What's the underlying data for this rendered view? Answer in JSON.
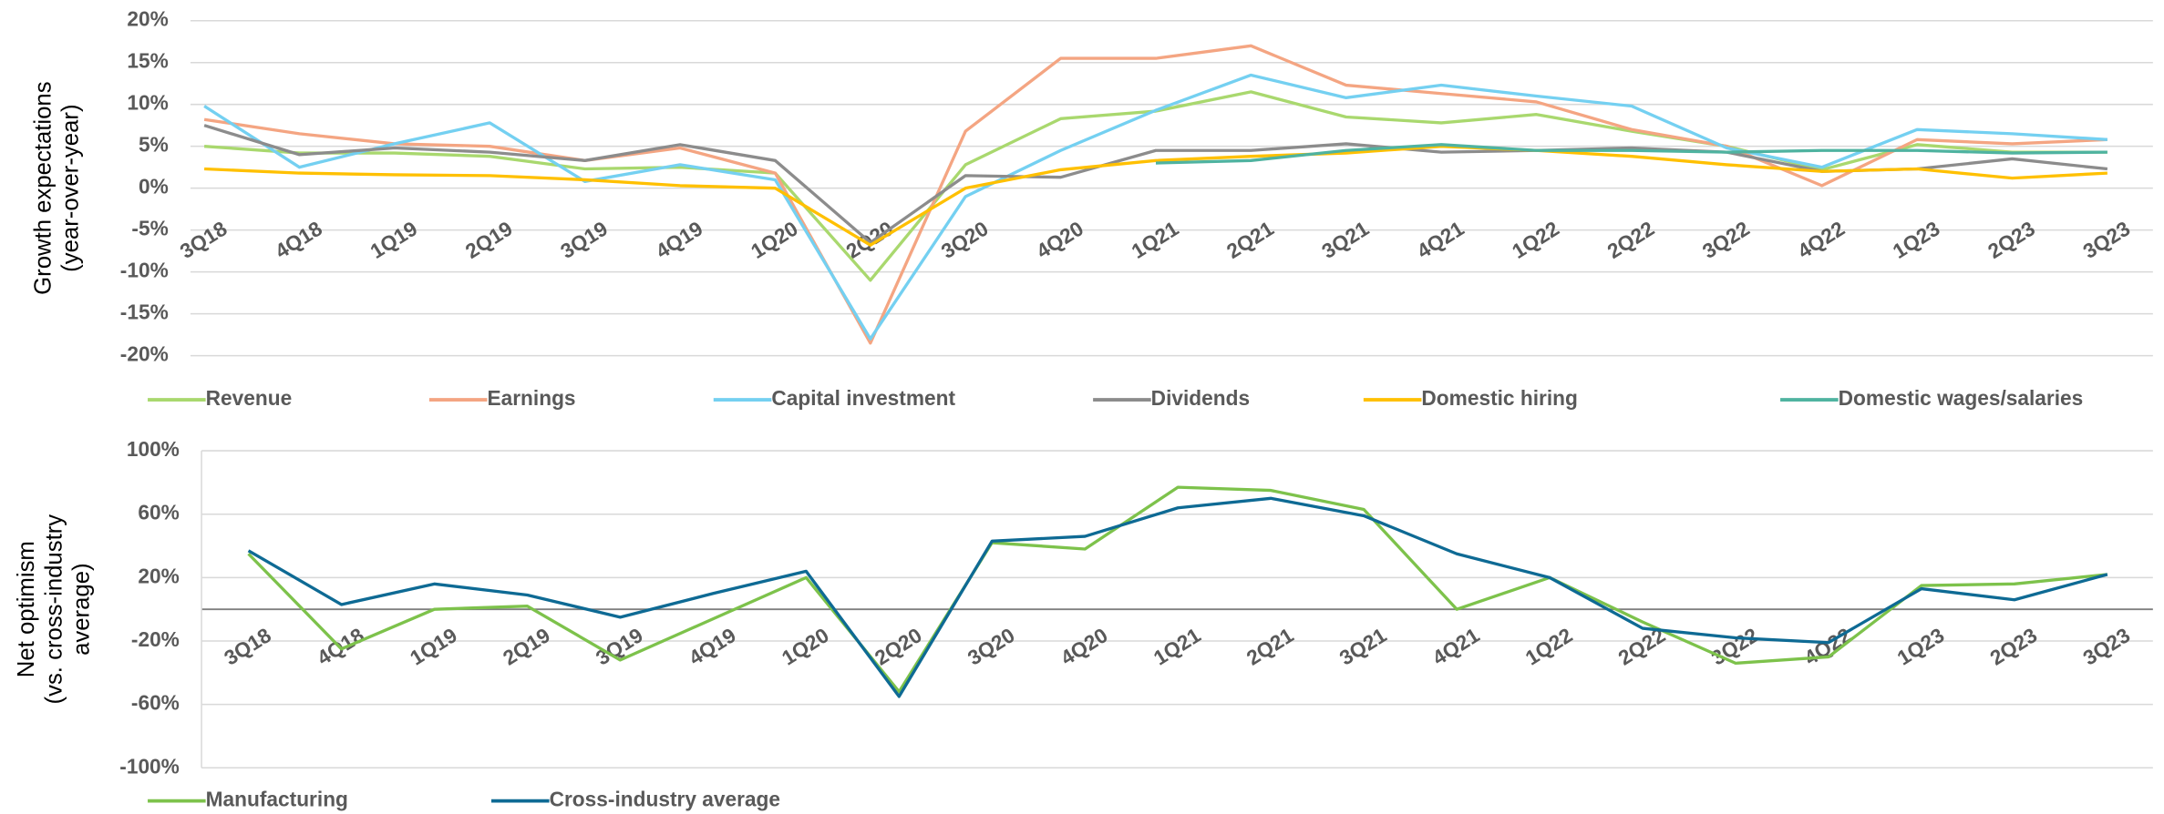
{
  "chart_data": [
    {
      "type": "line",
      "y_label": [
        "Growth expectations",
        "(year-over-year)"
      ],
      "categories": [
        "3Q18",
        "4Q18",
        "1Q19",
        "2Q19",
        "3Q19",
        "4Q19",
        "1Q20",
        "2Q20",
        "3Q20",
        "4Q20",
        "1Q21",
        "2Q21",
        "3Q21",
        "4Q21",
        "1Q22",
        "2Q22",
        "3Q22",
        "4Q22",
        "1Q23",
        "2Q23",
        "3Q23"
      ],
      "ylim": [
        -20,
        20
      ],
      "yticks": [
        {
          "value": 20,
          "label": "20%"
        },
        {
          "value": 15,
          "label": "15%"
        },
        {
          "value": 10,
          "label": "10%"
        },
        {
          "value": 5,
          "label": "5%"
        },
        {
          "value": 0,
          "label": "0%"
        },
        {
          "value": -5,
          "label": "-5%"
        },
        {
          "value": -10,
          "label": "-10%"
        },
        {
          "value": -15,
          "label": "-15%"
        },
        {
          "value": -20,
          "label": "-20%"
        }
      ],
      "grid": true,
      "series": [
        {
          "name": "Revenue",
          "color": "#a9d86e",
          "values": [
            5,
            4.2,
            4.2,
            3.8,
            2.3,
            2.5,
            1.8,
            -11,
            2.8,
            8.3,
            9.2,
            11.5,
            8.5,
            7.8,
            8.8,
            6.8,
            5,
            2.2,
            5.2,
            4.3,
            4.3
          ]
        },
        {
          "name": "Earnings",
          "color": "#f4a582",
          "values": [
            8.2,
            6.5,
            5.3,
            5,
            3.3,
            4.8,
            1.8,
            -18.5,
            6.8,
            15.5,
            15.5,
            17,
            12.3,
            11.3,
            10.3,
            7,
            5,
            0.3,
            5.8,
            5.3,
            5.8
          ]
        },
        {
          "name": "Capital investment",
          "color": "#74d0f1",
          "values": [
            9.8,
            2.5,
            5.3,
            7.8,
            0.8,
            2.8,
            1,
            -18,
            -1,
            4.5,
            9.3,
            13.5,
            10.8,
            12.3,
            11,
            9.8,
            4.8,
            2.5,
            7,
            6.5,
            5.8
          ]
        },
        {
          "name": "Dividends",
          "color": "#8c8c8c",
          "values": [
            7.5,
            4,
            4.8,
            4.3,
            3.3,
            5.2,
            3.3,
            -6.5,
            1.5,
            1.3,
            4.5,
            4.5,
            5.3,
            4.3,
            4.5,
            4.8,
            4.3,
            2,
            2.3,
            3.5,
            2.3
          ]
        },
        {
          "name": "Domestic hiring",
          "color": "#ffc000",
          "values": [
            2.3,
            1.8,
            1.6,
            1.5,
            1,
            0.3,
            0,
            -6.8,
            0,
            2.2,
            3.3,
            3.8,
            4.2,
            5,
            4.5,
            3.8,
            2.8,
            2,
            2.3,
            1.2,
            1.8
          ]
        },
        {
          "name": "Domestic wages/salaries",
          "color": "#4fb3a0",
          "values": [
            null,
            null,
            null,
            null,
            null,
            null,
            null,
            null,
            null,
            null,
            3,
            3.3,
            4.5,
            5.2,
            4.5,
            4.5,
            4.3,
            4.5,
            4.5,
            4.2,
            4.3
          ]
        }
      ]
    },
    {
      "type": "line",
      "y_label": [
        "Net optimism",
        "(vs. cross-industry",
        "average)"
      ],
      "categories": [
        "3Q18",
        "4Q18",
        "1Q19",
        "2Q19",
        "3Q19",
        "4Q19",
        "1Q20",
        "2Q20",
        "3Q20",
        "4Q20",
        "1Q21",
        "2Q21",
        "3Q21",
        "4Q21",
        "1Q22",
        "2Q22",
        "3Q22",
        "4Q22",
        "1Q23",
        "2Q23",
        "3Q23"
      ],
      "ylim": [
        -100,
        100
      ],
      "yticks": [
        {
          "value": 100,
          "label": "100%"
        },
        {
          "value": 60,
          "label": "60%"
        },
        {
          "value": 20,
          "label": "20%"
        },
        {
          "value": -20,
          "label": "-20%"
        },
        {
          "value": -60,
          "label": "-60%"
        },
        {
          "value": -100,
          "label": "-100%"
        }
      ],
      "grid": true,
      "series": [
        {
          "name": "Manufacturing",
          "color": "#7dc24b",
          "values": [
            35,
            -25,
            0,
            2,
            -32,
            -6,
            20,
            -52,
            42,
            38,
            77,
            75,
            63,
            0,
            20,
            -8,
            -34,
            -30,
            15,
            16,
            22
          ]
        },
        {
          "name": "Cross-industry average",
          "color": "#0e6a94",
          "values": [
            37,
            3,
            16,
            9,
            -5,
            10,
            24,
            -55,
            43,
            46,
            64,
            70,
            59,
            35,
            20,
            -12,
            -18,
            -21,
            13,
            6,
            22
          ]
        }
      ]
    }
  ]
}
